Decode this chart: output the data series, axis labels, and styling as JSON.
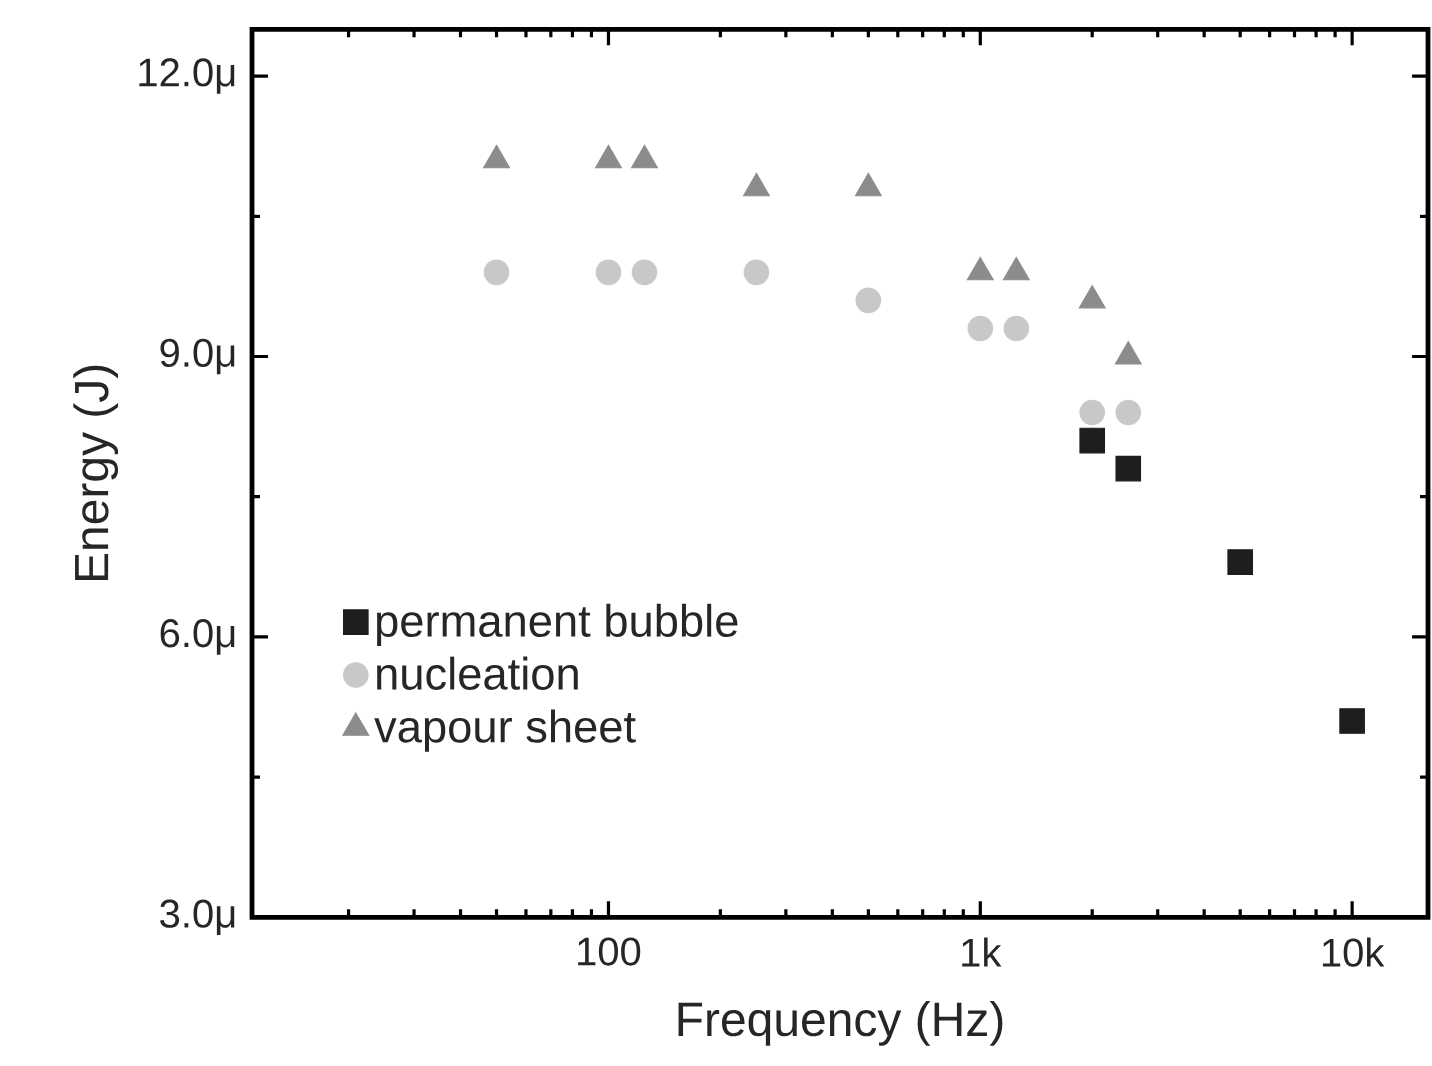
{
  "chart_data": {
    "type": "scatter",
    "xlabel": "Frequency (Hz)",
    "ylabel": "Energy (J)",
    "log": "x",
    "xlim": [
      11,
      16000
    ],
    "ylim": [
      3,
      12.5
    ],
    "xticks": [
      {
        "value": 100,
        "label": "100"
      },
      {
        "value": 1000,
        "label": "1k"
      },
      {
        "value": 10000,
        "label": "10k"
      }
    ],
    "yticks": [
      {
        "value": 3,
        "label": "3.0μ"
      },
      {
        "value": 6,
        "label": "6.0μ"
      },
      {
        "value": 9,
        "label": "9.0μ"
      },
      {
        "value": 12,
        "label": "12.0μ"
      }
    ],
    "legend": "bottom left",
    "grid": false,
    "series": [
      {
        "name": "permanent bubble",
        "color": "#1e1e1e",
        "marker": "square",
        "x": [
          2000,
          2500,
          5000,
          10000
        ],
        "values": [
          8.1,
          7.8,
          6.8,
          5.1
        ]
      },
      {
        "name": "nucleation",
        "color": "#c8c8c8",
        "marker": "circle",
        "x": [
          50,
          100,
          125,
          250,
          500,
          1000,
          1250,
          2000,
          2500
        ],
        "values": [
          9.9,
          9.9,
          9.9,
          9.9,
          9.6,
          9.3,
          9.3,
          8.4,
          8.4
        ]
      },
      {
        "name": "vapour sheet",
        "color": "#8c8c8c",
        "marker": "triangle",
        "x": [
          50,
          100,
          125,
          250,
          500,
          1000,
          1250,
          2000,
          2500
        ],
        "values": [
          11.1,
          11.1,
          11.1,
          10.8,
          10.8,
          9.9,
          9.9,
          9.6,
          9.0
        ]
      }
    ]
  }
}
